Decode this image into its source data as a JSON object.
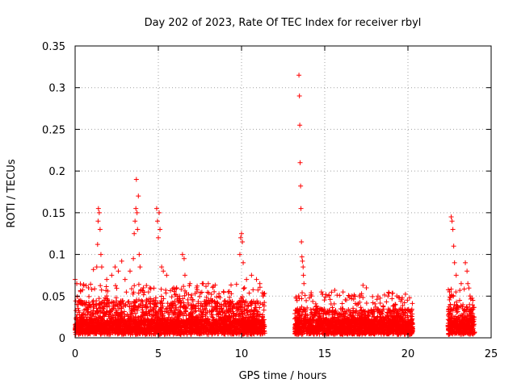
{
  "chart_data": {
    "type": "scatter",
    "title": "Day 202 of 2023, Rate Of TEC Index for receiver rbyl",
    "xlabel": "GPS time / hours",
    "ylabel": "ROTI / TECUs",
    "xlim": [
      0,
      25
    ],
    "ylim": [
      0,
      0.35
    ],
    "xticks": [
      0,
      5,
      10,
      15,
      20,
      25
    ],
    "xtick_labels": [
      "0",
      "5",
      "10",
      "15",
      "20",
      "25"
    ],
    "yticks": [
      0,
      0.05,
      0.1,
      0.15,
      0.2,
      0.25,
      0.3,
      0.35
    ],
    "ytick_labels": [
      "0",
      "0.05",
      "0.1",
      "0.15",
      "0.2",
      "0.25",
      "0.3",
      "0.35"
    ],
    "grid": true,
    "marker": "+",
    "color": "#ff0000",
    "series": [
      {
        "name": "ROTI",
        "data_segments": [
          {
            "x_start": 0.0,
            "x_end": 11.4,
            "typical_max": 0.045
          },
          {
            "x_start": 13.2,
            "x_end": 20.3,
            "typical_max": 0.035
          },
          {
            "x_start": 22.4,
            "x_end": 24.0,
            "typical_max": 0.04
          }
        ],
        "points": [
          [
            0.0,
            0.07
          ],
          [
            0.1,
            0.065
          ],
          [
            0.3,
            0.045
          ],
          [
            0.8,
            0.06
          ],
          [
            1.0,
            0.058
          ],
          [
            1.1,
            0.082
          ],
          [
            1.3,
            0.085
          ],
          [
            1.35,
            0.112
          ],
          [
            1.38,
            0.14
          ],
          [
            1.4,
            0.155
          ],
          [
            1.45,
            0.15
          ],
          [
            1.5,
            0.13
          ],
          [
            1.55,
            0.1
          ],
          [
            1.6,
            0.085
          ],
          [
            1.9,
            0.07
          ],
          [
            2.2,
            0.075
          ],
          [
            2.4,
            0.085
          ],
          [
            2.6,
            0.08
          ],
          [
            2.8,
            0.092
          ],
          [
            3.0,
            0.07
          ],
          [
            3.3,
            0.08
          ],
          [
            3.5,
            0.095
          ],
          [
            3.55,
            0.125
          ],
          [
            3.6,
            0.14
          ],
          [
            3.65,
            0.155
          ],
          [
            3.68,
            0.19
          ],
          [
            3.72,
            0.15
          ],
          [
            3.75,
            0.13
          ],
          [
            3.8,
            0.17
          ],
          [
            3.85,
            0.1
          ],
          [
            3.9,
            0.085
          ],
          [
            4.1,
            0.06
          ],
          [
            4.5,
            0.06
          ],
          [
            4.9,
            0.155
          ],
          [
            4.95,
            0.14
          ],
          [
            5.0,
            0.12
          ],
          [
            5.05,
            0.15
          ],
          [
            5.1,
            0.13
          ],
          [
            5.2,
            0.085
          ],
          [
            5.3,
            0.08
          ],
          [
            5.5,
            0.075
          ],
          [
            6.1,
            0.06
          ],
          [
            6.45,
            0.1
          ],
          [
            6.55,
            0.095
          ],
          [
            6.6,
            0.075
          ],
          [
            6.9,
            0.065
          ],
          [
            7.3,
            0.06
          ],
          [
            7.7,
            0.065
          ],
          [
            8.0,
            0.045
          ],
          [
            9.2,
            0.055
          ],
          [
            9.9,
            0.1
          ],
          [
            9.95,
            0.12
          ],
          [
            10.0,
            0.125
          ],
          [
            10.05,
            0.115
          ],
          [
            10.1,
            0.09
          ],
          [
            10.3,
            0.07
          ],
          [
            10.6,
            0.075
          ],
          [
            10.9,
            0.07
          ],
          [
            11.1,
            0.065
          ],
          [
            11.3,
            0.05
          ],
          [
            13.45,
            0.315
          ],
          [
            13.48,
            0.29
          ],
          [
            13.5,
            0.255
          ],
          [
            13.52,
            0.21
          ],
          [
            13.55,
            0.182
          ],
          [
            13.57,
            0.155
          ],
          [
            13.6,
            0.115
          ],
          [
            13.63,
            0.097
          ],
          [
            13.66,
            0.092
          ],
          [
            13.7,
            0.085
          ],
          [
            13.72,
            0.075
          ],
          [
            13.75,
            0.065
          ],
          [
            14.2,
            0.05
          ],
          [
            14.8,
            0.055
          ],
          [
            15.6,
            0.057
          ],
          [
            16.1,
            0.055
          ],
          [
            16.5,
            0.048
          ],
          [
            17.3,
            0.063
          ],
          [
            17.5,
            0.06
          ],
          [
            18.2,
            0.05
          ],
          [
            18.8,
            0.05
          ],
          [
            19.5,
            0.048
          ],
          [
            20.1,
            0.048
          ],
          [
            22.6,
            0.145
          ],
          [
            22.65,
            0.14
          ],
          [
            22.7,
            0.13
          ],
          [
            22.75,
            0.11
          ],
          [
            22.8,
            0.09
          ],
          [
            22.9,
            0.075
          ],
          [
            23.2,
            0.065
          ],
          [
            23.45,
            0.09
          ],
          [
            23.55,
            0.08
          ],
          [
            23.6,
            0.065
          ],
          [
            23.9,
            0.045
          ]
        ]
      }
    ]
  }
}
